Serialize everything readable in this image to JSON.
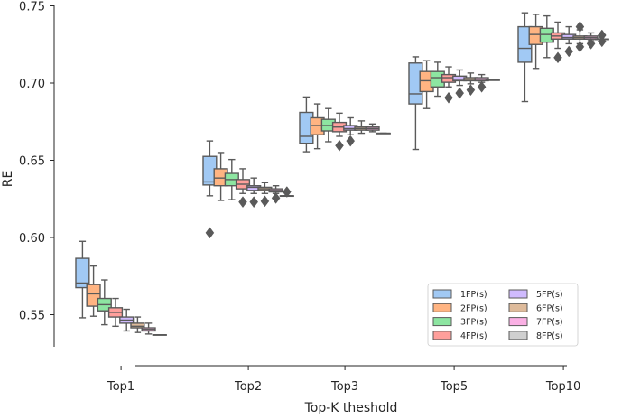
{
  "chart_data": {
    "type": "boxplot",
    "xlabel": "Top-K theshold",
    "ylabel": "RE",
    "ylim": [
      0.525,
      0.75
    ],
    "yticks": [
      0.55,
      0.6,
      0.65,
      0.7,
      0.75
    ],
    "ytick_labels": [
      "0.55",
      "0.60",
      "0.65",
      "0.70",
      "0.75"
    ],
    "categories": [
      "Top1",
      "Top2",
      "Top3",
      "Top5",
      "Top10"
    ],
    "legend_position": "lower-right",
    "series": [
      {
        "name": "1FP(s)",
        "color": "#a1c9f4",
        "boxes": [
          {
            "whislo": 0.548,
            "q1": 0.5675,
            "med": 0.5705,
            "q3": 0.5865,
            "whishi": 0.5975,
            "fliers": []
          },
          {
            "whislo": 0.627,
            "q1": 0.634,
            "med": 0.636,
            "q3": 0.6525,
            "whishi": 0.6625,
            "fliers": [
              0.603
            ]
          },
          {
            "whislo": 0.6555,
            "q1": 0.661,
            "med": 0.6655,
            "q3": 0.681,
            "whishi": 0.691,
            "fliers": []
          },
          {
            "whislo": 0.657,
            "q1": 0.6865,
            "med": 0.693,
            "q3": 0.713,
            "whishi": 0.717,
            "fliers": []
          },
          {
            "whislo": 0.688,
            "q1": 0.7135,
            "med": 0.7225,
            "q3": 0.7365,
            "whishi": 0.7455,
            "fliers": []
          }
        ]
      },
      {
        "name": "2FP(s)",
        "color": "#ffb482",
        "boxes": [
          {
            "whislo": 0.549,
            "q1": 0.5555,
            "med": 0.5635,
            "q3": 0.5695,
            "whishi": 0.5815,
            "fliers": []
          },
          {
            "whislo": 0.624,
            "q1": 0.6335,
            "med": 0.6385,
            "q3": 0.6445,
            "whishi": 0.655,
            "fliers": []
          },
          {
            "whislo": 0.6575,
            "q1": 0.6665,
            "med": 0.6725,
            "q3": 0.6775,
            "whishi": 0.6865,
            "fliers": []
          },
          {
            "whislo": 0.6835,
            "q1": 0.6945,
            "med": 0.7015,
            "q3": 0.7075,
            "whishi": 0.7145,
            "fliers": []
          },
          {
            "whislo": 0.7095,
            "q1": 0.725,
            "med": 0.7315,
            "q3": 0.7365,
            "whishi": 0.7445,
            "fliers": []
          }
        ]
      },
      {
        "name": "3FP(s)",
        "color": "#8de5a1",
        "boxes": [
          {
            "whislo": 0.5435,
            "q1": 0.5525,
            "med": 0.5565,
            "q3": 0.5605,
            "whishi": 0.5725,
            "fliers": []
          },
          {
            "whislo": 0.6245,
            "q1": 0.6335,
            "med": 0.6375,
            "q3": 0.6415,
            "whishi": 0.6505,
            "fliers": []
          },
          {
            "whislo": 0.662,
            "q1": 0.669,
            "med": 0.6725,
            "q3": 0.6765,
            "whishi": 0.6835,
            "fliers": []
          },
          {
            "whislo": 0.6915,
            "q1": 0.6975,
            "med": 0.7035,
            "q3": 0.7075,
            "whishi": 0.7135,
            "fliers": []
          },
          {
            "whislo": 0.7165,
            "q1": 0.7265,
            "med": 0.7315,
            "q3": 0.7355,
            "whishi": 0.7435,
            "fliers": []
          }
        ]
      },
      {
        "name": "4FP(s)",
        "color": "#ff9f9b",
        "boxes": [
          {
            "whislo": 0.5425,
            "q1": 0.5485,
            "med": 0.5515,
            "q3": 0.5545,
            "whishi": 0.5605,
            "fliers": []
          },
          {
            "whislo": 0.6285,
            "q1": 0.6315,
            "med": 0.6345,
            "q3": 0.6375,
            "whishi": 0.6445,
            "fliers": [
              0.623
            ]
          },
          {
            "whislo": 0.6655,
            "q1": 0.6685,
            "med": 0.6715,
            "q3": 0.6745,
            "whishi": 0.6805,
            "fliers": [
              0.6595
            ]
          },
          {
            "whislo": 0.6975,
            "q1": 0.7005,
            "med": 0.7035,
            "q3": 0.7055,
            "whishi": 0.7105,
            "fliers": [
              0.6905
            ]
          },
          {
            "whislo": 0.7225,
            "q1": 0.7285,
            "med": 0.7305,
            "q3": 0.7325,
            "whishi": 0.7395,
            "fliers": [
              0.7165
            ]
          }
        ]
      },
      {
        "name": "5FP(s)",
        "color": "#d0bbff",
        "boxes": [
          {
            "whislo": 0.5395,
            "q1": 0.5445,
            "med": 0.5465,
            "q3": 0.5485,
            "whishi": 0.5535,
            "fliers": []
          },
          {
            "whislo": 0.6285,
            "q1": 0.6305,
            "med": 0.6325,
            "q3": 0.6335,
            "whishi": 0.6385,
            "fliers": [
              0.623
            ]
          },
          {
            "whislo": 0.6665,
            "q1": 0.6695,
            "med": 0.6705,
            "q3": 0.6725,
            "whishi": 0.6775,
            "fliers": [
              0.6625
            ]
          },
          {
            "whislo": 0.6985,
            "q1": 0.7015,
            "med": 0.7025,
            "q3": 0.7045,
            "whishi": 0.7085,
            "fliers": [
              0.6935
            ]
          },
          {
            "whislo": 0.7255,
            "q1": 0.7285,
            "med": 0.7295,
            "q3": 0.7315,
            "whishi": 0.7365,
            "fliers": [
              0.7205
            ]
          }
        ]
      },
      {
        "name": "6FP(s)",
        "color": "#debb9b",
        "boxes": [
          {
            "whislo": 0.5385,
            "q1": 0.5415,
            "med": 0.5425,
            "q3": 0.5445,
            "whishi": 0.5485,
            "fliers": []
          },
          {
            "whislo": 0.6285,
            "q1": 0.6305,
            "med": 0.6315,
            "q3": 0.6325,
            "whishi": 0.6355,
            "fliers": [
              0.6235
            ]
          },
          {
            "whislo": 0.6675,
            "q1": 0.6695,
            "med": 0.6705,
            "q3": 0.6715,
            "whishi": 0.6755,
            "fliers": []
          },
          {
            "whislo": 0.6995,
            "q1": 0.7015,
            "med": 0.7025,
            "q3": 0.7035,
            "whishi": 0.7065,
            "fliers": [
              0.6955
            ]
          },
          {
            "whislo": 0.7255,
            "q1": 0.7285,
            "med": 0.7295,
            "q3": 0.7305,
            "whishi": 0.7345,
            "fliers": [
              0.7235,
              0.7365
            ]
          }
        ]
      },
      {
        "name": "7FP(s)",
        "color": "#fab0e4",
        "boxes": [
          {
            "whislo": 0.5375,
            "q1": 0.5395,
            "med": 0.5405,
            "q3": 0.5415,
            "whishi": 0.5445,
            "fliers": []
          },
          {
            "whislo": 0.6285,
            "q1": 0.6295,
            "med": 0.6305,
            "q3": 0.6315,
            "whishi": 0.6335,
            "fliers": [
              0.6255
            ]
          },
          {
            "whislo": 0.6685,
            "q1": 0.6695,
            "med": 0.6705,
            "q3": 0.6715,
            "whishi": 0.6735,
            "fliers": []
          },
          {
            "whislo": 0.7005,
            "q1": 0.7015,
            "med": 0.7025,
            "q3": 0.7035,
            "whishi": 0.7055,
            "fliers": [
              0.6975
            ]
          },
          {
            "whislo": 0.7275,
            "q1": 0.7285,
            "med": 0.7295,
            "q3": 0.7305,
            "whishi": 0.7325,
            "fliers": [
              0.7255
            ]
          }
        ]
      },
      {
        "name": "8FP(s)",
        "color": "#cfcfcf",
        "boxes": [
          {
            "whislo": 0.537,
            "q1": 0.537,
            "med": 0.537,
            "q3": 0.537,
            "whishi": 0.537,
            "fliers": []
          },
          {
            "whislo": 0.627,
            "q1": 0.627,
            "med": 0.627,
            "q3": 0.627,
            "whishi": 0.627,
            "fliers": [
              0.6295
            ]
          },
          {
            "whislo": 0.6675,
            "q1": 0.6675,
            "med": 0.6675,
            "q3": 0.6675,
            "whishi": 0.6675,
            "fliers": []
          },
          {
            "whislo": 0.702,
            "q1": 0.702,
            "med": 0.702,
            "q3": 0.702,
            "whishi": 0.702,
            "fliers": []
          },
          {
            "whislo": 0.7285,
            "q1": 0.7285,
            "med": 0.7285,
            "q3": 0.7285,
            "whishi": 0.7285,
            "fliers": [
              0.727,
              0.731
            ]
          }
        ]
      }
    ]
  }
}
